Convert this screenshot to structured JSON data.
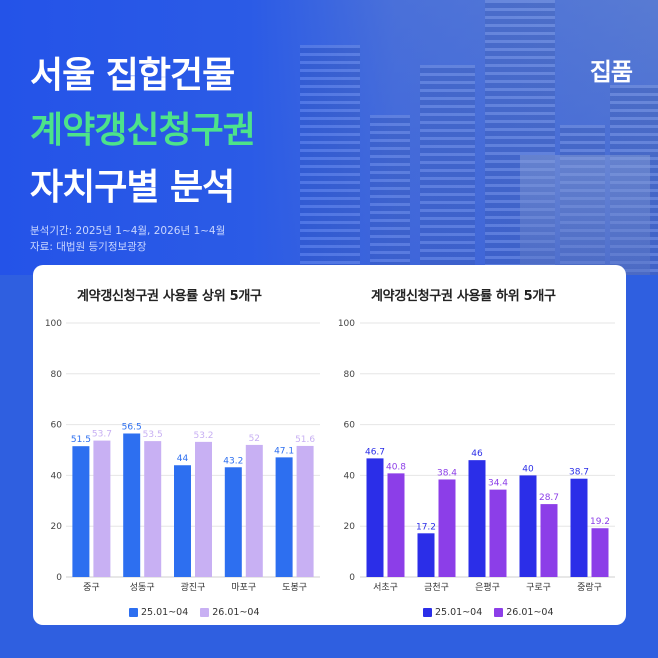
{
  "header": {
    "title_line1": "서울 집합건물",
    "title_line2": "계약갱신청구권",
    "title_line3": "자치구별 분석",
    "brand": "집품",
    "period": "분석기간: 2025년 1~4월, 2026년 1~4월",
    "source": "자료: 대법원 등기정보광장"
  },
  "chart_data": [
    {
      "type": "bar",
      "title": "계약갱신청구권 사용률 상위 5개구",
      "categories": [
        "중구",
        "성동구",
        "광진구",
        "마포구",
        "도봉구"
      ],
      "series": [
        {
          "name": "25.01~04",
          "values": [
            51.5,
            56.5,
            44,
            43.2,
            47.1
          ],
          "color": "#2d6ff0"
        },
        {
          "name": "26.01~04",
          "values": [
            53.7,
            53.5,
            53.2,
            52,
            51.6
          ],
          "color": "#c8b0f3"
        }
      ],
      "ylim": [
        0,
        100
      ],
      "yticks": [
        0,
        20,
        40,
        60,
        80,
        100
      ],
      "grid": true,
      "legend": "bottom"
    },
    {
      "type": "bar",
      "title": "계약갱신청구권 사용률 하위 5개구",
      "categories": [
        "서초구",
        "금천구",
        "은평구",
        "구로구",
        "중랑구"
      ],
      "series": [
        {
          "name": "25.01~04",
          "values": [
            46.7,
            17.2,
            46,
            40,
            38.7
          ],
          "color": "#2b2ee8"
        },
        {
          "name": "26.01~04",
          "values": [
            40.8,
            38.4,
            34.4,
            28.7,
            19.2
          ],
          "color": "#8c3ee8"
        }
      ],
      "ylim": [
        0,
        100
      ],
      "yticks": [
        0,
        20,
        40,
        60,
        80,
        100
      ],
      "grid": true,
      "legend": "bottom"
    }
  ]
}
